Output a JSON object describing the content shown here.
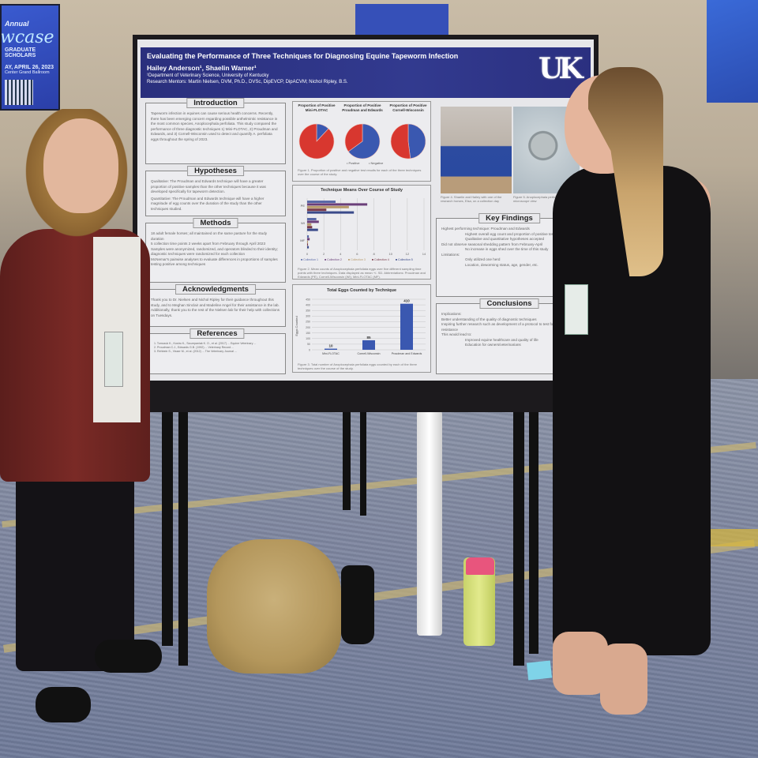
{
  "background_sign": {
    "line1": "Annual",
    "line2": "wcase",
    "line3": "GRADUATE SCHOLARS",
    "date": "AY, APRIL 26, 2023",
    "venue": "Center Grand Ballroom"
  },
  "poster": {
    "title": "Evaluating the Performance of Three Techniques for Diagnosing Equine Tapeworm Infection",
    "authors": "Hailey Anderson¹, Shaelin Warner¹",
    "department": "¹Department of Veterinary Science, University of Kentucky",
    "mentors": "Research Mentors: Martin Nielsen, DVM, Ph.D., DVSc, DipEVCP, DipACVM; Nichol Ripley, B.S.",
    "logo": "UK",
    "sections": {
      "introduction": {
        "title": "Introduction",
        "text": "Tapeworm infection in equines can cause serious health concerns. Recently, there has been emerging concern regarding possible anthelmintic resistance in the most common species, Anoplocephala perfoliata. This study compared the performance of three diagnostic techniques 1) Mini-FLOTAC, 2) Proudman and Edwards, and 3) Cornell-Wisconsin used to detect and quantify A. perfoliata eggs throughout the spring of 2023."
      },
      "hypotheses": {
        "title": "Hypotheses",
        "items": [
          "Qualitative: The Proudman and Edwards technique will have a greater proportion of positive samples than the other techniques because it was developed specifically for tapeworm detection.",
          "Quantitative: The Proudman and Edwards technique will have a higher magnitude of egg counts over the duration of the study than the other techniques studied."
        ]
      },
      "methods": {
        "title": "Methods",
        "items": [
          "18 adult female horses; all maintained on the same pasture for the study duration",
          "5 collection time points 2 weeks apart from February through April 2023",
          "Samples were anonymized, randomized, and operators blinded to their identity; diagnostic techniques were randomized for each collection",
          "McNemar's pairwise analyses to evaluate differences in proportions of samples testing positive among techniques"
        ]
      },
      "acknowledgments": {
        "title": "Acknowledgments",
        "text": "Thank you to Dr. Nielsen and Nichol Ripley for their guidance throughout this study, and to Meghan Sinclair and Madeline Angel for their assistance in the lab. Additionally, thank you to the rest of the Nielsen lab for their help with collections on Tuesdays."
      },
      "references": {
        "title": "References",
        "items": [
          "1. Tomczuk K., Kostro K., Szczepaniak K. O., et al. (2017) ... Equine Veterinary ...",
          "2. Proudman C.J., Edwards G.B. (1992) ... Veterinary Record ...",
          "3. Rehbein S., Visser M., et al. (2012) ... The Veterinary Journal ..."
        ]
      },
      "key_findings": {
        "title": "Key Findings",
        "items": [
          "Highest performing technique: Proudman and Edwards",
          "Highest overall egg count and proportion of positive tests",
          "Qualitative and quantitative hypotheses accepted",
          "Did not observe seasonal shedding pattern from February-April",
          "No increase in eggs shed over the time of this study",
          "Limitations:",
          "Only utilized one herd",
          "Location, deworming status, age, gender, etc."
        ]
      },
      "conclusions": {
        "title": "Conclusions",
        "items": [
          "Implications:",
          "Better understanding of the quality of diagnostic techniques",
          "Inspiring further research such as development of a protocol to test for drug resistance",
          "This would lead to:",
          "Improved equine healthcare and quality of life",
          "Education for owners/veterinarians"
        ]
      }
    },
    "figure_captions": {
      "fig1": "Figure 1. Proportion of positive and negative test results for each of the three techniques over the course of the study.",
      "fig2": "Figure 2. Mean counts of Anoplocephala perfoliata eggs over five different sampling time points with three techniques. Data displayed as mean +/- SD. Abbreviations: Proudman and Edwards (PE), Cornell-Wisconsin (WI), Mini-FLOTAC (MF).",
      "fig3": "Figure 3. Total number of Anoplocephala perfoliata eggs counted by each of the three techniques over the course of the study.",
      "fig4": "Figure 4. Shaelin and Hailey with one of the research horses, Elsa, on a collection day",
      "fig5": "Figure 5. Anoplocephala perfoliata egg 40x microscope view"
    }
  },
  "chart_data": [
    {
      "type": "pie",
      "title": "Proportion of Positive Mini-FLOTAC",
      "slices": [
        {
          "name": "Positive",
          "value": 12,
          "color": "#3a58b0"
        },
        {
          "name": "Negative",
          "value": 88,
          "color": "#d8372f"
        }
      ]
    },
    {
      "type": "pie",
      "title": "Proportion of Positive Proudman and Edwards",
      "slices": [
        {
          "name": "Positive",
          "value": 65,
          "color": "#3a58b0"
        },
        {
          "name": "Negative",
          "value": 35,
          "color": "#d8372f"
        }
      ]
    },
    {
      "type": "pie",
      "title": "Proportion of Positive Cornell-Wisconsin",
      "slices": [
        {
          "name": "Positive",
          "value": 48,
          "color": "#3a58b0"
        },
        {
          "name": "Negative",
          "value": 52,
          "color": "#d8372f"
        }
      ]
    },
    {
      "type": "bar",
      "orientation": "horizontal",
      "title": "Technique Means Over Course of Study",
      "categories": [
        "PE",
        "WI",
        "MF"
      ],
      "xlim": [
        0,
        14
      ],
      "xticks": [
        "0",
        "2",
        "4",
        "6",
        "8",
        "10",
        "12",
        "14"
      ],
      "legend": "bottom",
      "series": [
        {
          "name": "Collection 1",
          "values": [
            3.4,
            1.1,
            0.2
          ],
          "color": "#5a6aa8"
        },
        {
          "name": "Collection 2",
          "values": [
            7.2,
            1.4,
            0.3
          ],
          "color": "#6a3f7a"
        },
        {
          "name": "Collection 3",
          "values": [
            5.0,
            0.5,
            0.1
          ],
          "color": "#b89a6a"
        },
        {
          "name": "Collection 4",
          "values": [
            2.3,
            0.6,
            0.1
          ],
          "color": "#7a3a4a"
        },
        {
          "name": "Collection 5",
          "values": [
            5.6,
            1.3,
            0.2
          ],
          "color": "#3a4a8a"
        }
      ]
    },
    {
      "type": "bar",
      "title": "Total Eggs Counted by Technique",
      "ylabel": "Eggs Counted",
      "categories": [
        "Mini-FLOTAC",
        "Cornell-Wisconsin",
        "Proudman and Edwards"
      ],
      "values": [
        10,
        85,
        410
      ],
      "ylim": [
        0,
        450
      ],
      "yticks": [
        "0",
        "50",
        "100",
        "150",
        "200",
        "250",
        "300",
        "350",
        "400",
        "450"
      ],
      "color": "#3a58b0"
    }
  ]
}
